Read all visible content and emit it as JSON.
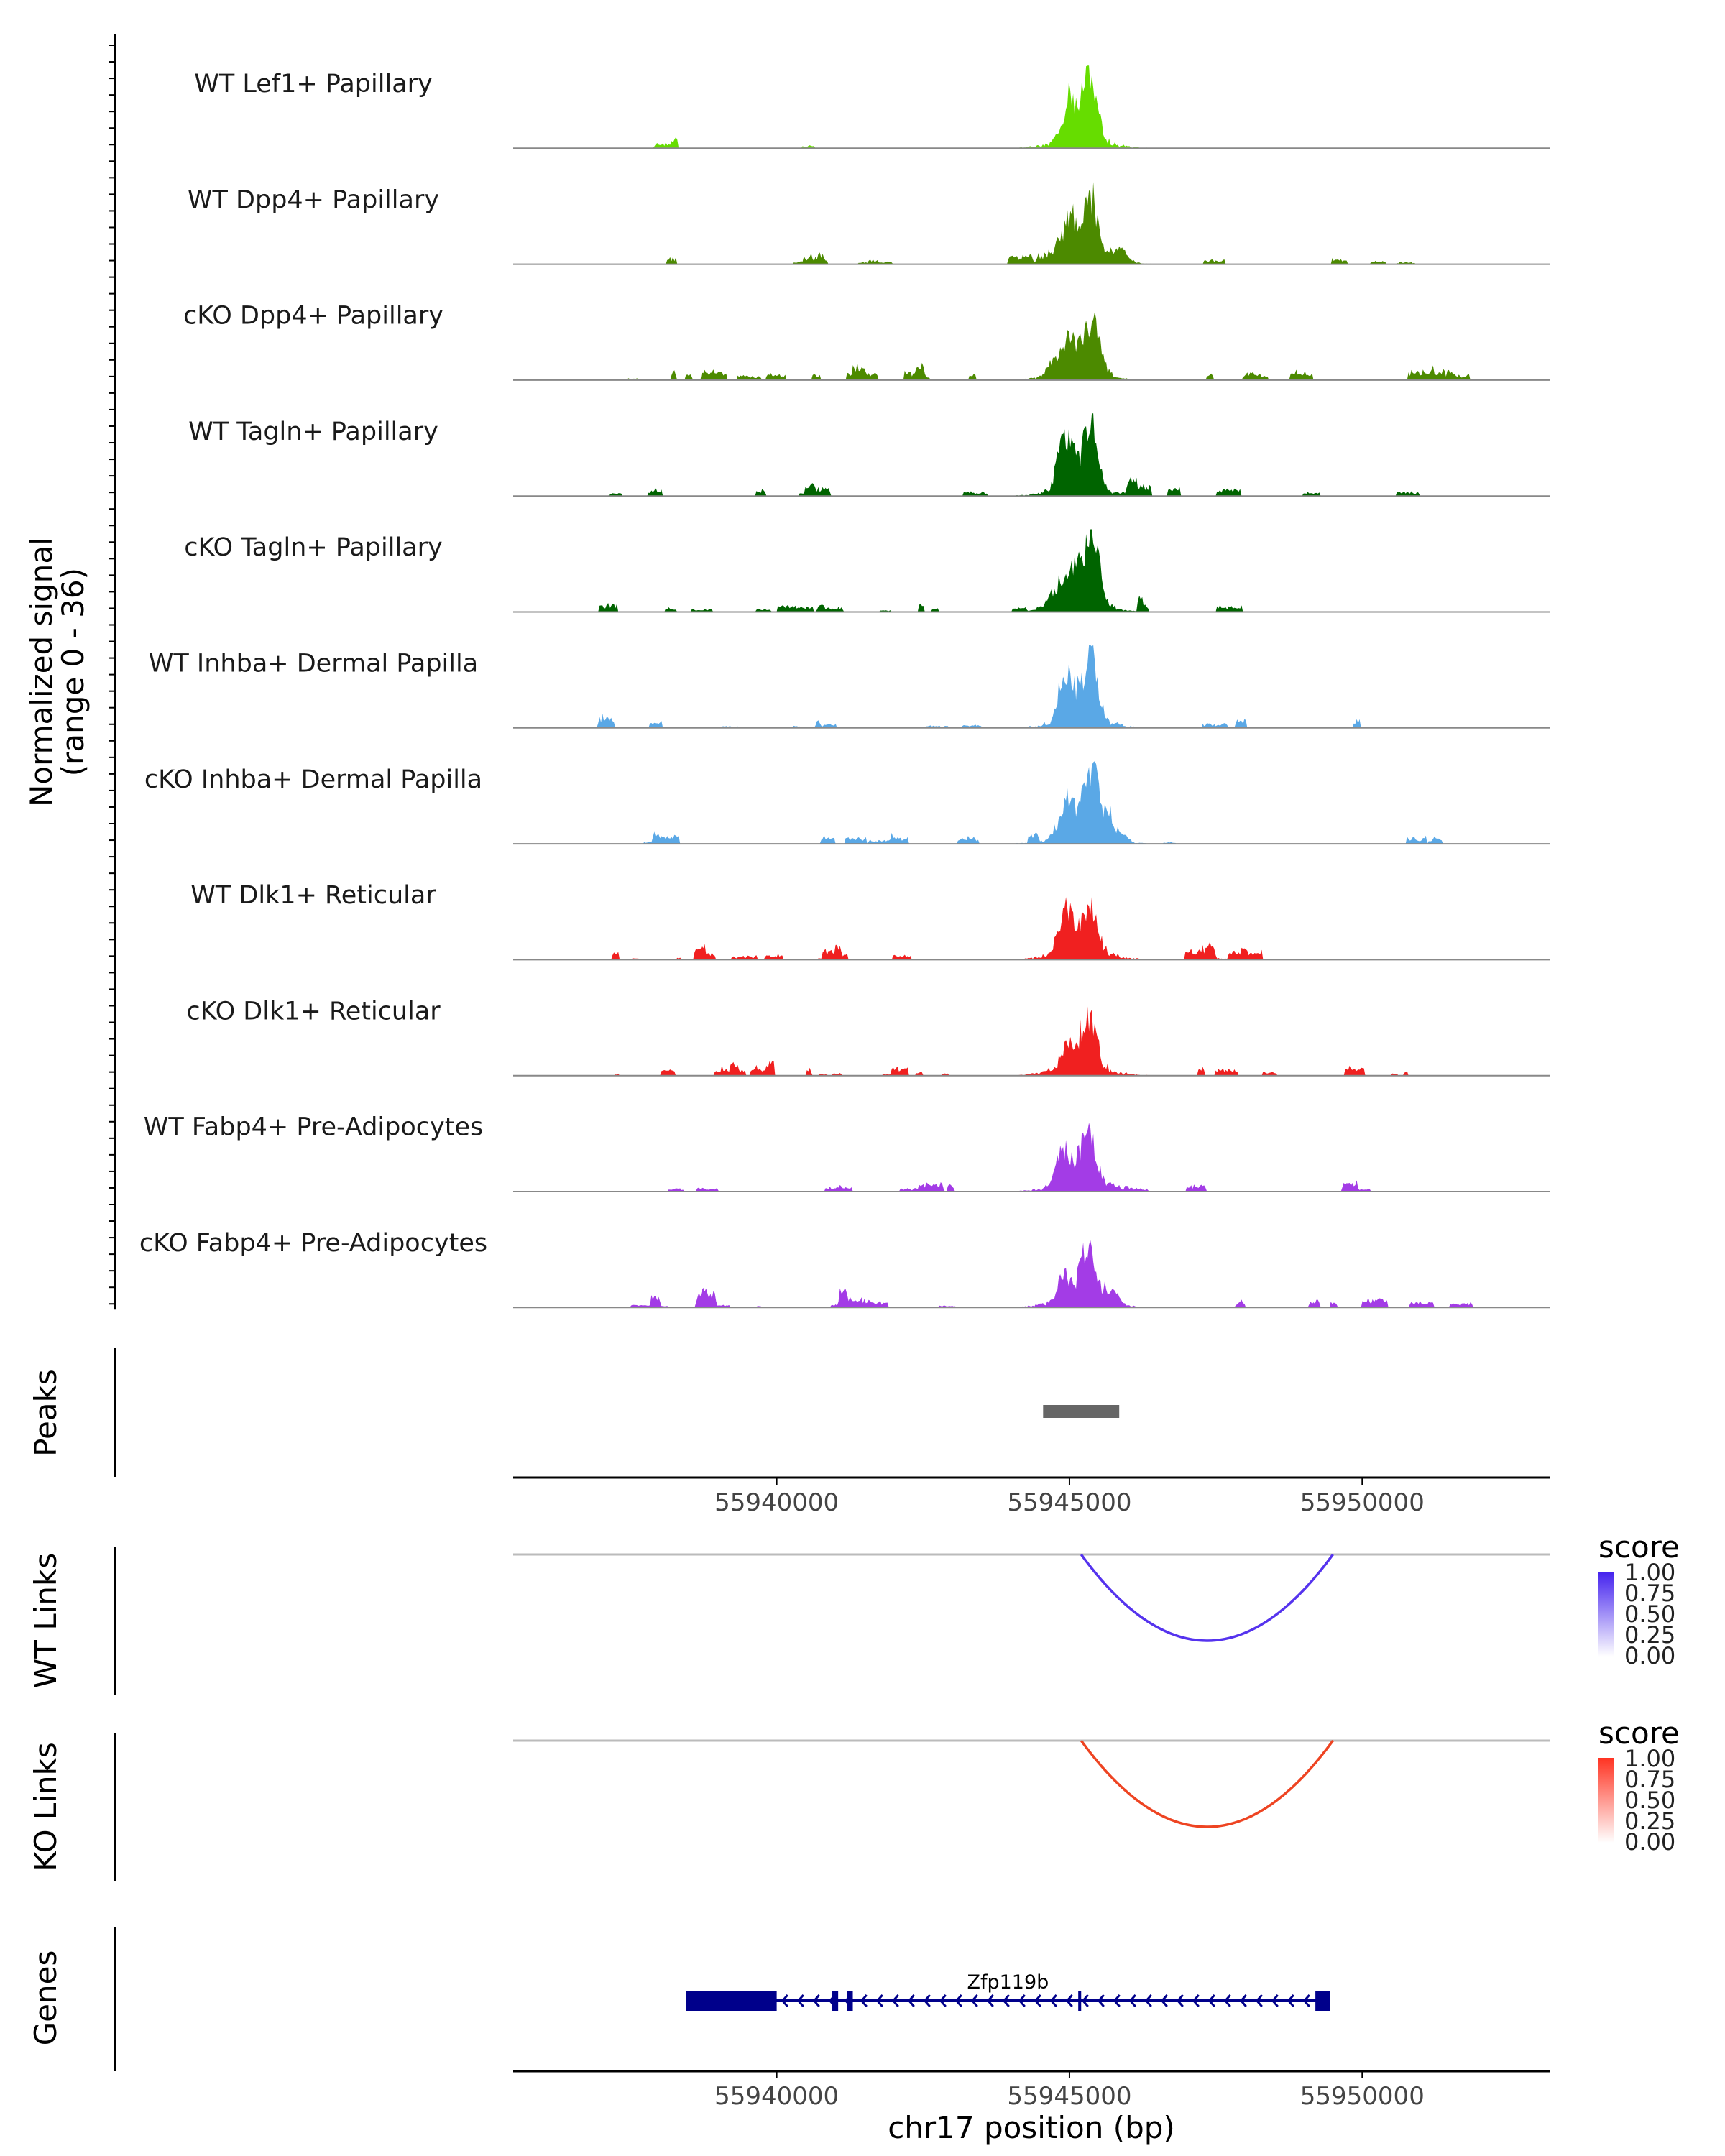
{
  "chart_data": {
    "type": "area",
    "title": "",
    "coverage": {
      "ylabel": [
        "Normalized signal",
        "(range 0 - 36)"
      ],
      "ylim": [
        0,
        36
      ],
      "x_range": [
        55935500,
        55953200
      ],
      "tracks": [
        {
          "label": "WT Lef1+ Papillary",
          "color": "#66dd00",
          "peaks": [
            [
              55945000,
              0.55
            ],
            [
              55945350,
              0.85
            ]
          ],
          "base_level": 0.02,
          "noise": 0.1,
          "seed": 11
        },
        {
          "label": "WT Dpp4+ Papillary",
          "color": "#4c8a00",
          "peaks": [
            [
              55945000,
              0.5
            ],
            [
              55945350,
              0.85
            ],
            [
              55945850,
              0.18
            ]
          ],
          "base_level": 0.05,
          "noise": 0.45,
          "seed": 23
        },
        {
          "label": "cKO Dpp4+ Papillary",
          "color": "#4c8a00",
          "peaks": [
            [
              55944800,
              0.25
            ],
            [
              55945050,
              0.45
            ],
            [
              55945400,
              0.75
            ]
          ],
          "base_level": 0.08,
          "noise": 0.8,
          "seed": 37
        },
        {
          "label": "WT Tagln+ Papillary",
          "color": "#006400",
          "peaks": [
            [
              55944950,
              0.7
            ],
            [
              55945350,
              0.9
            ]
          ],
          "base_level": 0.04,
          "noise": 0.5,
          "seed": 41
        },
        {
          "label": "cKO Tagln+ Papillary",
          "color": "#006400",
          "peaks": [
            [
              55944800,
              0.25
            ],
            [
              55945100,
              0.5
            ],
            [
              55945400,
              0.95
            ]
          ],
          "base_level": 0.06,
          "noise": 0.6,
          "seed": 53
        },
        {
          "label": "WT Inhba+ Dermal Papilla",
          "color": "#5aa8e6",
          "peaks": [
            [
              55944950,
              0.7
            ],
            [
              55945350,
              0.9
            ]
          ],
          "base_level": 0.03,
          "noise": 0.4,
          "seed": 67
        },
        {
          "label": "cKO Inhba+ Dermal Papilla",
          "color": "#5aa8e6",
          "peaks": [
            [
              55944950,
              0.45
            ],
            [
              55945350,
              0.9
            ],
            [
              55945650,
              0.25
            ]
          ],
          "base_level": 0.04,
          "noise": 0.5,
          "seed": 71
        },
        {
          "label": "WT Dlk1+ Reticular",
          "color": "#f02020",
          "peaks": [
            [
              55944950,
              0.6
            ],
            [
              55945350,
              0.65
            ]
          ],
          "base_level": 0.04,
          "noise": 0.6,
          "seed": 83
        },
        {
          "label": "cKO Dlk1+ Reticular",
          "color": "#f02020",
          "peaks": [
            [
              55945000,
              0.35
            ],
            [
              55945350,
              0.6
            ]
          ],
          "base_level": 0.05,
          "noise": 0.7,
          "seed": 97
        },
        {
          "label": "WT Fabp4+ Pre-Adipocytes",
          "color": "#a33ce6",
          "peaks": [
            [
              55944900,
              0.45
            ],
            [
              55945300,
              0.75
            ]
          ],
          "base_level": 0.03,
          "noise": 0.5,
          "seed": 101
        },
        {
          "label": "cKO Fabp4+ Pre-Adipocytes",
          "color": "#a33ce6",
          "peaks": [
            [
              55944900,
              0.3
            ],
            [
              55945300,
              0.7
            ],
            [
              55945700,
              0.2
            ]
          ],
          "base_level": 0.04,
          "noise": 0.6,
          "seed": 113
        }
      ]
    },
    "peaks_track": {
      "ylabel": "Peaks",
      "regions": [
        [
          55944550,
          55945850
        ]
      ],
      "color": "#666666",
      "xticks": [
        55940000,
        55945000,
        55950000
      ]
    },
    "links": [
      {
        "ylabel": "WT Links",
        "start": 55945200,
        "end": 55949500,
        "score": 1.0,
        "color": "#5533ee",
        "legend_title": "score",
        "legend_ticks": [
          "1.00",
          "0.75",
          "0.50",
          "0.25",
          "0.00"
        ],
        "legend_color": "#4422ee"
      },
      {
        "ylabel": "KO Links",
        "start": 55945200,
        "end": 55949500,
        "score": 1.0,
        "color": "#ee4422",
        "legend_title": "score",
        "legend_ticks": [
          "1.00",
          "0.75",
          "0.50",
          "0.25",
          "0.00"
        ],
        "legend_color": "#ff3322"
      }
    ],
    "genes": {
      "ylabel": "Genes",
      "gene_name": "Zfp119b",
      "strand": "-",
      "color": "#00008b",
      "gene_start": 55938450,
      "gene_end": 55949450,
      "exons": [
        [
          55938450,
          55940000
        ],
        [
          55940950,
          55941050
        ],
        [
          55941200,
          55941300
        ],
        [
          55945150,
          55945200
        ],
        [
          55949200,
          55949450
        ]
      ],
      "xticks": [
        55940000,
        55945000,
        55950000
      ],
      "xlabel": "chr17 position (bp)"
    }
  }
}
